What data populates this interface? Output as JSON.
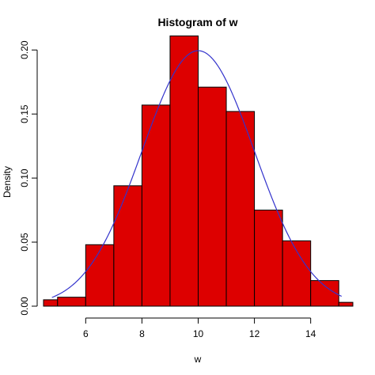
{
  "chart_data": {
    "type": "histogram",
    "title": "Histogram of w",
    "xlabel": "w",
    "ylabel": "Density",
    "bins": [
      {
        "x0": 4.5,
        "x1": 5.0,
        "density": 0.005
      },
      {
        "x0": 5.0,
        "x1": 6.0,
        "density": 0.007
      },
      {
        "x0": 6.0,
        "x1": 7.0,
        "density": 0.048
      },
      {
        "x0": 7.0,
        "x1": 8.0,
        "density": 0.094
      },
      {
        "x0": 8.0,
        "x1": 9.0,
        "density": 0.157
      },
      {
        "x0": 9.0,
        "x1": 10.0,
        "density": 0.211
      },
      {
        "x0": 10.0,
        "x1": 11.0,
        "density": 0.171
      },
      {
        "x0": 11.0,
        "x1": 12.0,
        "density": 0.152
      },
      {
        "x0": 12.0,
        "x1": 13.0,
        "density": 0.075
      },
      {
        "x0": 13.0,
        "x1": 14.0,
        "density": 0.051
      },
      {
        "x0": 14.0,
        "x1": 15.0,
        "density": 0.02
      },
      {
        "x0": 15.0,
        "x1": 15.5,
        "density": 0.003
      }
    ],
    "curve": {
      "type": "normal-density",
      "mean": 10,
      "sd": 2,
      "x_from": 4.8,
      "x_to": 15.1
    },
    "xlim": [
      4.5,
      15.5
    ],
    "ylim": [
      0,
      0.21
    ],
    "x_ticks": [
      6,
      8,
      10,
      12,
      14
    ],
    "y_ticks": [
      {
        "value": 0.0,
        "label": "0.00"
      },
      {
        "value": 0.05,
        "label": "0.05"
      },
      {
        "value": 0.1,
        "label": "0.10"
      },
      {
        "value": 0.15,
        "label": "0.15"
      },
      {
        "value": 0.2,
        "label": "0.20"
      }
    ],
    "bar_color": "#dd0000",
    "bar_border_color": "#000000",
    "curve_color": "#3333cc"
  }
}
